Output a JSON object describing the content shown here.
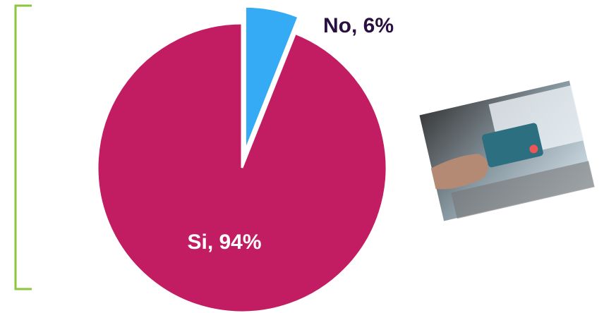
{
  "chart_data": {
    "type": "pie",
    "values": [
      94,
      6
    ],
    "value_labels": [
      "Si, 94%",
      "No, 6%"
    ],
    "colors": [
      "#c21c62",
      "#35aaf5"
    ],
    "explode": [
      0,
      1
    ]
  }
}
